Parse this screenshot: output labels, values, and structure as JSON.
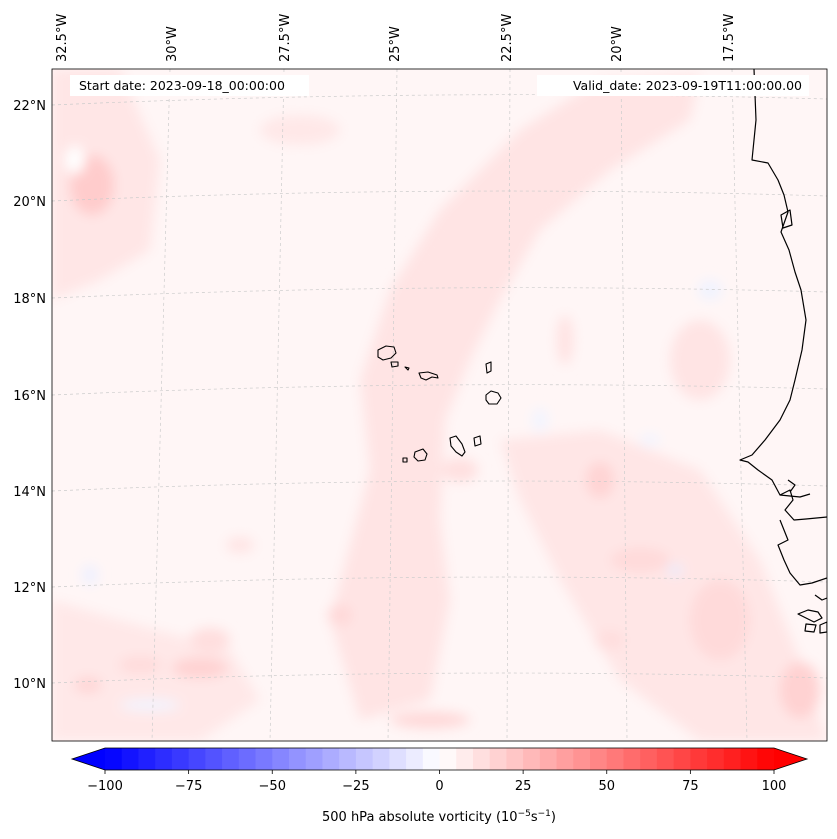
{
  "header": {
    "start_date": "Start date: 2023-09-18_00:00:00",
    "valid_date": "Valid_date: 2023-09-19T11:00:00.00"
  },
  "map": {
    "projection": "Lambert conformal",
    "field": "500 hPa absolute vorticity",
    "extent": {
      "lon": [
        -33,
        -16
      ],
      "lat": [
        9,
        23
      ]
    },
    "lon_ticks": [
      "32.5°W",
      "30°W",
      "27.5°W",
      "25°W",
      "22.5°W",
      "20°W",
      "17.5°W"
    ],
    "lat_ticks": [
      "22°N",
      "20°N",
      "18°N",
      "16°N",
      "14°N",
      "12°N",
      "10°N"
    ],
    "gridlines": true,
    "coastline_color": "#000000",
    "gridline_color": "#cccccc"
  },
  "colorbar": {
    "label_prefix": "500 hPa absolute vorticity (10",
    "label_exp1": "−5",
    "label_mid": "s",
    "label_exp2": "−1",
    "label_suffix": ")",
    "ticks": [
      "−100",
      "−75",
      "−50",
      "−25",
      "0",
      "25",
      "50",
      "75",
      "100"
    ],
    "vmin": -100,
    "vmax": 100,
    "levels": 40,
    "extend": "both",
    "colormap": "bwr",
    "low_color": "#0000ff",
    "mid_color": "#ffffff",
    "high_color": "#ff0000"
  }
}
